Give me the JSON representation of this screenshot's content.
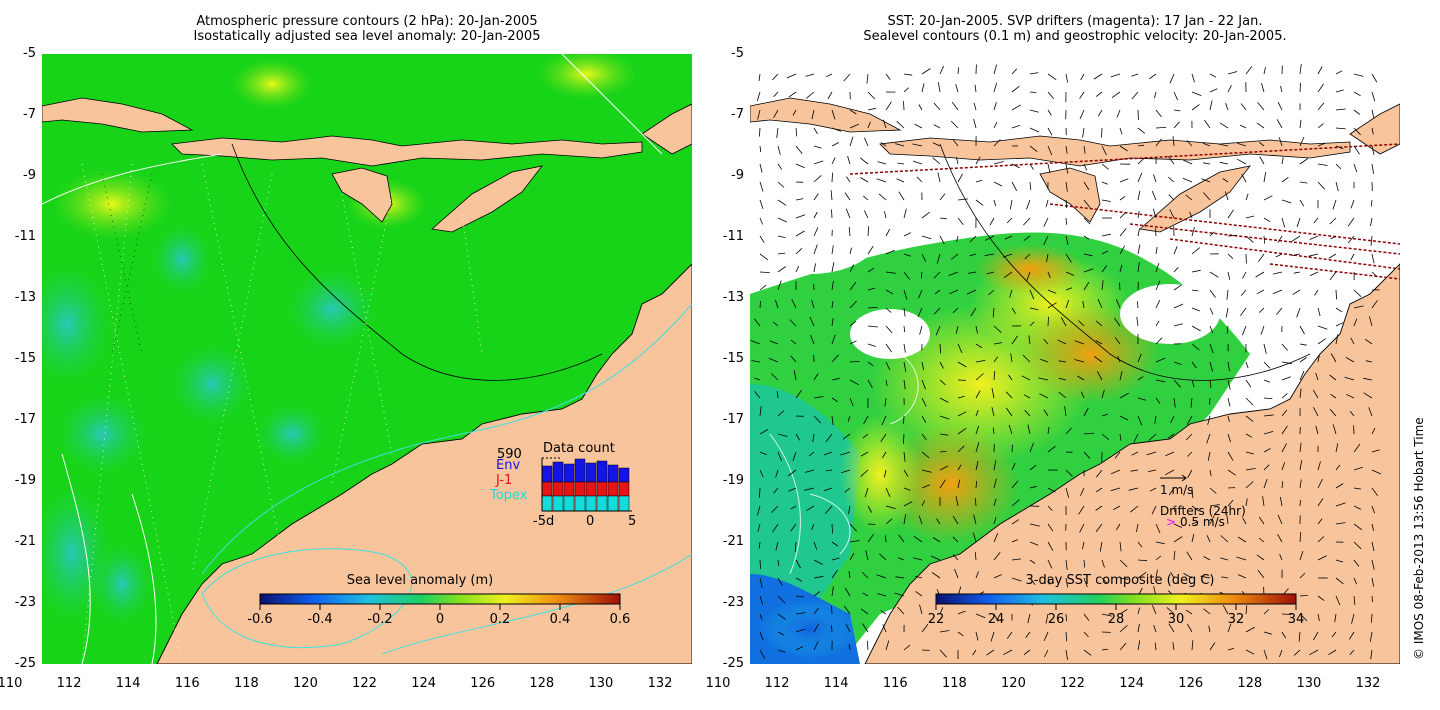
{
  "left_panel": {
    "title_line1": "Atmospheric pressure contours (2 hPa): 20-Jan-2005",
    "title_line2": "Isostatically adjusted sea level anomaly: 20-Jan-2005",
    "colorbar_title": "Sea level anomaly (m)",
    "colorbar_ticks": [
      "-0.6",
      "-0.4",
      "-0.2",
      "0",
      "0.2",
      "0.4",
      "0.6"
    ],
    "inset": {
      "title": "Data count",
      "max_label": "590",
      "env_label": "Env",
      "j1_label": "J-1",
      "topex_label": "Topex",
      "x_ticks": [
        "-5d",
        "0",
        "5"
      ],
      "colors": {
        "env": "#1414e6",
        "j1": "#e61414",
        "topex": "#14dcdc"
      }
    }
  },
  "right_panel": {
    "title_line1": "SST: 20-Jan-2005. SVP drifters (magenta): 17 Jan - 22 Jan.",
    "title_line2": "Sealevel contours (0.1 m) and geostrophic velocity: 20-Jan-2005.",
    "colorbar_title": "3-day SST composite (deg C)",
    "colorbar_ticks": [
      "22",
      "24",
      "26",
      "28",
      "30",
      "32",
      "34"
    ],
    "velocity_key": "1 m/s",
    "drifters_label": "Drifters (24hr)",
    "drifters_speed": "0.5 m/s",
    "drifter_marker": ">"
  },
  "y_ticks": [
    "-5",
    "-7",
    "-9",
    "-11",
    "-13",
    "-15",
    "-17",
    "-19",
    "-21",
    "-23",
    "-25"
  ],
  "x_ticks": [
    "110",
    "112",
    "114",
    "116",
    "118",
    "120",
    "122",
    "124",
    "126",
    "128",
    "130",
    "132"
  ],
  "credit": "© IMOS 08-Feb-2013 13:56 Hobart Time",
  "colors": {
    "land": "#f8c49c",
    "ocean_green": "#18d418",
    "teal": "#30c8a0",
    "yellow": "#e8f020",
    "orange": "#f0a010"
  }
}
